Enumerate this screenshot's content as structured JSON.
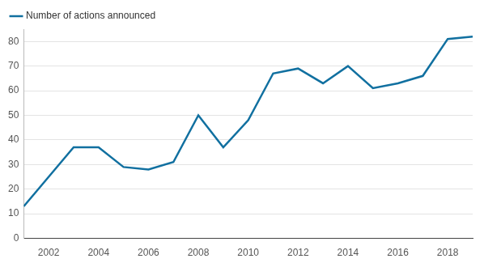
{
  "chart_data": {
    "type": "line",
    "x": [
      2001,
      2002,
      2003,
      2004,
      2005,
      2006,
      2007,
      2008,
      2009,
      2010,
      2011,
      2012,
      2013,
      2014,
      2015,
      2016,
      2017,
      2018,
      2019
    ],
    "series": [
      {
        "name": "Number of actions announced",
        "color": "#1170a0",
        "values": [
          13,
          25,
          37,
          37,
          29,
          28,
          31,
          50,
          37,
          48,
          67,
          69,
          63,
          70,
          61,
          63,
          66,
          81,
          82
        ]
      }
    ],
    "xlim": [
      2001,
      2019
    ],
    "xticks": [
      2002,
      2004,
      2006,
      2008,
      2010,
      2012,
      2014,
      2016,
      2018
    ],
    "ylim": [
      0,
      85
    ],
    "yticks": [
      0,
      10,
      20,
      30,
      40,
      50,
      60,
      70,
      80
    ],
    "grid": true,
    "legend": "top-left"
  }
}
